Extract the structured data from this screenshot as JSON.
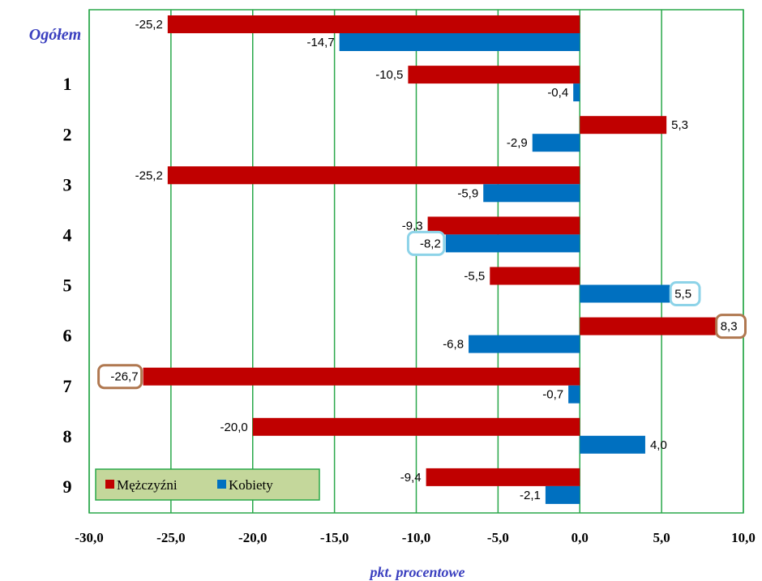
{
  "chart_data": {
    "type": "bar",
    "orientation": "horizontal",
    "categories": [
      "Ogółem",
      "1",
      "2",
      "3",
      "4",
      "5",
      "6",
      "7",
      "8",
      "9"
    ],
    "series": [
      {
        "name": "Mężczyźni",
        "color": "#c00000",
        "values": [
          -25.2,
          -10.5,
          5.3,
          -25.2,
          -9.3,
          -5.5,
          8.3,
          -26.7,
          -20.0,
          -9.4
        ],
        "labels": [
          "-25,2",
          "-10,5",
          "5,3",
          "-25,2",
          "-9,3",
          "-5,5",
          "8,3",
          "-26,7",
          "-20,0",
          "-9,4"
        ]
      },
      {
        "name": "Kobiety",
        "color": "#0070c0",
        "values": [
          -14.7,
          -0.4,
          -2.9,
          -5.9,
          -8.2,
          5.5,
          -6.8,
          -0.7,
          4.0,
          -2.1
        ],
        "labels": [
          "-14,7",
          "-0,4",
          "-2,9",
          "-5,9",
          "-8,2",
          "5,5",
          "-6,8",
          "-0,7",
          "4,0",
          "-2,1"
        ]
      }
    ],
    "highlights": [
      {
        "series": 0,
        "category": "6",
        "color": "#b07850"
      },
      {
        "series": 0,
        "category": "7",
        "color": "#b07850"
      },
      {
        "series": 1,
        "category": "4",
        "color": "#8dd3e8"
      },
      {
        "series": 1,
        "category": "5",
        "color": "#8dd3e8"
      }
    ],
    "xlim": [
      -30,
      10
    ],
    "xticks": [
      -30,
      -25,
      -20,
      -15,
      -10,
      -5,
      0,
      5,
      10
    ],
    "xtick_labels": [
      "-30,0",
      "-25,0",
      "-20,0",
      "-15,0",
      "-10,0",
      "-5,0",
      "0,0",
      "5,0",
      "10,0"
    ],
    "xlabel": "pkt. procentowe",
    "grid": true,
    "grid_color": "#2aa84a",
    "legend_position": "bottom-left",
    "legend_background": "#c4d79b"
  }
}
